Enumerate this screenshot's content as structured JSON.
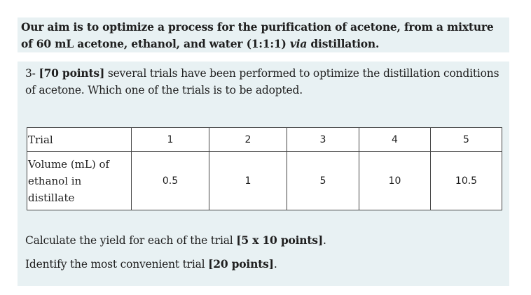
{
  "intro": {
    "text_before": "Our aim is to optimize a process for the purification of acetone, from a mixture of 60 mL acetone, ethanol, and water (1:1:1) ",
    "text_italic": "via",
    "text_after": " distillation."
  },
  "question": {
    "points_prefix": "3- ",
    "points_bold": "[70 points]",
    "body": " several trials have been performed to optimize the distillation conditions of acetone. Which one of the trials is to be adopted."
  },
  "table": {
    "header_label": "Trial",
    "trials": [
      "1",
      "2",
      "3",
      "4",
      "5"
    ],
    "row_label": "Volume (mL) of ethanol in distillate",
    "volumes": [
      "0.5",
      "1",
      "5",
      "10",
      "10.5"
    ]
  },
  "tasks": [
    {
      "text": "Calculate the yield for each of the trial ",
      "bold": "[5 x 10 points]",
      "end": "."
    },
    {
      "text": "Identify the most convenient trial ",
      "bold": "[20 points]",
      "end": "."
    }
  ]
}
